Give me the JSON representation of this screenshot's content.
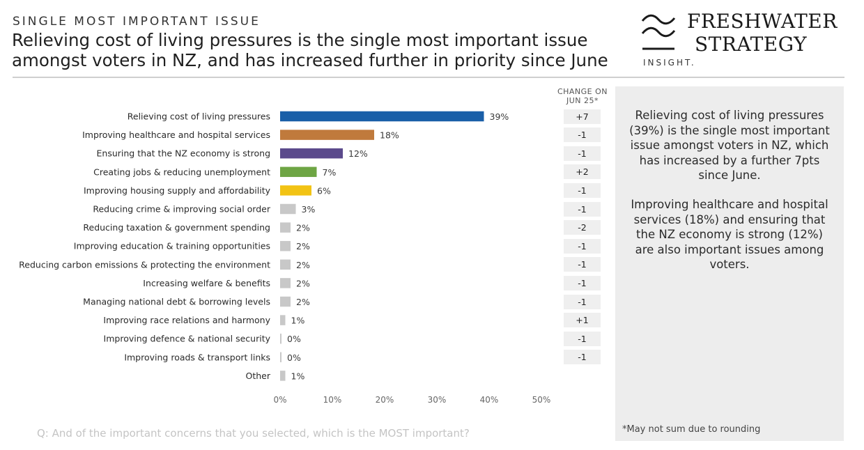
{
  "header": {
    "kicker": "SINGLE MOST IMPORTANT ISSUE",
    "title": "Relieving cost of living pressures is the single most important issue amongst voters in NZ, and has increased further in priority since June"
  },
  "logo": {
    "line1": "FRESHWATER",
    "line2": "STRATEGY",
    "sub": "INSIGHT."
  },
  "chart_data": {
    "type": "bar",
    "orientation": "horizontal",
    "categories": [
      "Relieving cost of living pressures",
      "Improving healthcare and hospital services",
      "Ensuring that the NZ economy is strong",
      "Creating jobs & reducing unemployment",
      "Improving housing supply and affordability",
      "Reducing crime & improving social order",
      "Reducing taxation & government spending",
      "Improving education & training opportunities",
      "Reducing carbon emissions & protecting the environment",
      "Increasing welfare & benefits",
      "Managing national debt & borrowing levels",
      "Improving race relations and harmony",
      "Improving defence & national security",
      "Improving roads & transport links",
      "Other"
    ],
    "values": [
      39,
      18,
      12,
      7,
      6,
      3,
      2,
      2,
      2,
      2,
      2,
      1,
      0,
      0,
      1
    ],
    "value_labels": [
      "39%",
      "18%",
      "12%",
      "7%",
      "6%",
      "3%",
      "2%",
      "2%",
      "2%",
      "2%",
      "2%",
      "1%",
      "0%",
      "0%",
      "1%"
    ],
    "colors": [
      "#1a5fa8",
      "#c07a3c",
      "#5b4a8c",
      "#6ea544",
      "#f2c314",
      "#c8c8c8",
      "#c8c8c8",
      "#c8c8c8",
      "#c8c8c8",
      "#c8c8c8",
      "#c8c8c8",
      "#c8c8c8",
      "#c8c8c8",
      "#c8c8c8",
      "#c8c8c8"
    ],
    "x_ticks": [
      "0%",
      "10%",
      "20%",
      "30%",
      "40%",
      "50%"
    ],
    "xlim": [
      0,
      50
    ],
    "grid": false,
    "change_header": [
      "CHANGE ON",
      "JUN 25*"
    ],
    "changes": [
      "+7",
      "-1",
      "-1",
      "+2",
      "-1",
      "-1",
      "-2",
      "-1",
      "-1",
      "-1",
      "-1",
      "+1",
      "-1",
      "-1"
    ]
  },
  "panel": {
    "para1": "Relieving cost of living pressures (39%) is the single most important issue amongst voters in NZ, which has increased by a further 7pts since June.",
    "para2": "Improving healthcare and hospital services (18%) and ensuring that the NZ economy is strong (12%) are also important issues among voters.",
    "note": "*May not sum due to rounding"
  },
  "footer": {
    "question": "Q: And of the important concerns that you selected, which is the MOST important?"
  }
}
